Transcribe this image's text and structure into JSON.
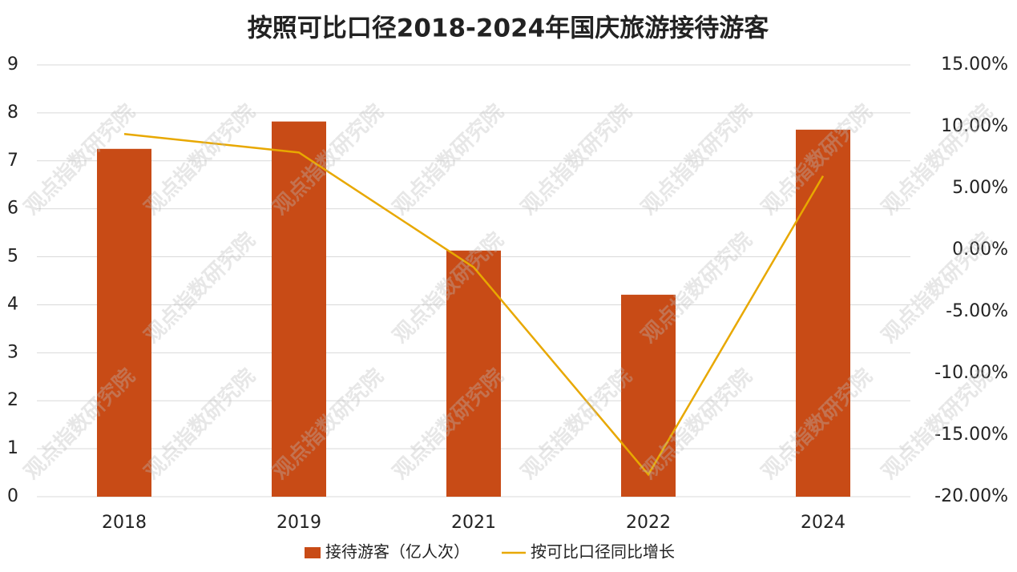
{
  "chart_data": {
    "type": "bar",
    "title": "按照可比口径2018-2024年国庆旅游接待游客",
    "watermark": "观点指数研究院",
    "categories": [
      "2018",
      "2019",
      "2021",
      "2022",
      "2024"
    ],
    "series": [
      {
        "name": "接待游客（亿人次）",
        "type": "bar",
        "color": "#c84b16",
        "values": [
          7.25,
          7.82,
          5.13,
          4.21,
          7.65
        ]
      },
      {
        "name": "按可比口径同比增长",
        "type": "line",
        "axis": "y2",
        "color": "#e8a800",
        "values": [
          9.4,
          7.9,
          -1.4,
          -18.2,
          6.0
        ]
      }
    ],
    "ylim": [
      0,
      9
    ],
    "yticks": [
      0,
      1,
      2,
      3,
      4,
      5,
      6,
      7,
      8,
      9
    ],
    "y2lim": [
      -20,
      15
    ],
    "y2ticks": [
      {
        "value": -20,
        "label": "-20.00%"
      },
      {
        "value": -15,
        "label": "-15.00%"
      },
      {
        "value": -10,
        "label": "-10.00%"
      },
      {
        "value": -5,
        "label": "-5.00%"
      },
      {
        "value": 0,
        "label": "0.00%"
      },
      {
        "value": 5,
        "label": "5.00%"
      },
      {
        "value": 10,
        "label": "10.00%"
      },
      {
        "value": 15,
        "label": "15.00%"
      }
    ],
    "grid": true
  }
}
